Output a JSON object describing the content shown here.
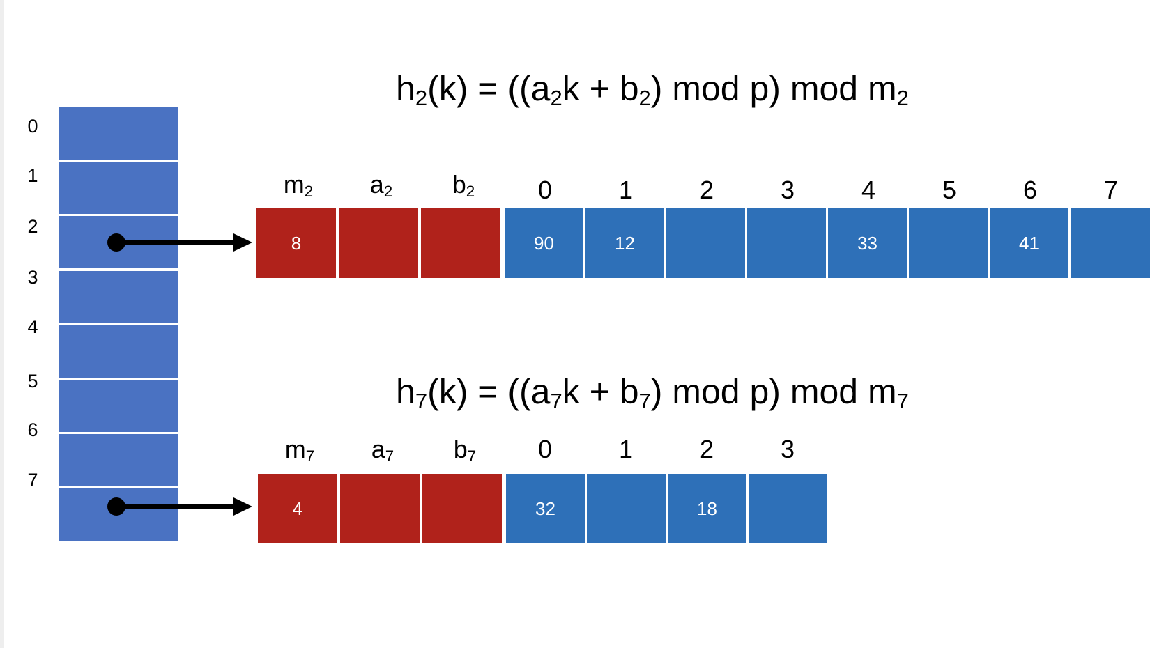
{
  "top_table": {
    "index_labels": [
      "0",
      "1",
      "2",
      "3",
      "4",
      "5",
      "6",
      "7"
    ]
  },
  "formula_2": {
    "h": "h",
    "h_sub": "2",
    "k": "(k) = ((a",
    "a_sub": "2",
    "k_plus_b": "k + b",
    "b_sub": "2",
    "tail": ") mod p) mod m",
    "m_sub": "2"
  },
  "formula_7": {
    "h": "h",
    "h_sub": "7",
    "k": "(k) = ((a",
    "a_sub": "7",
    "k_plus_b": "k + b",
    "b_sub": "7",
    "tail": ") mod p) mod m",
    "m_sub": "7"
  },
  "bucket_2": {
    "param_labels": [
      {
        "base": "m",
        "sub": "2"
      },
      {
        "base": "a",
        "sub": "2"
      },
      {
        "base": "b",
        "sub": "2"
      }
    ],
    "param_values": [
      "8",
      "",
      ""
    ],
    "slot_labels": [
      "0",
      "1",
      "2",
      "3",
      "4",
      "5",
      "6",
      "7"
    ],
    "slot_values": [
      "90",
      "12",
      "",
      "",
      "33",
      "",
      "41",
      ""
    ]
  },
  "bucket_7": {
    "param_labels": [
      {
        "base": "m",
        "sub": "7"
      },
      {
        "base": "a",
        "sub": "7"
      },
      {
        "base": "b",
        "sub": "7"
      }
    ],
    "param_values": [
      "4",
      "",
      ""
    ],
    "slot_labels": [
      "0",
      "1",
      "2",
      "3"
    ],
    "slot_values": [
      "32",
      "",
      "18",
      ""
    ]
  },
  "colors": {
    "top_slot": "#4a72c2",
    "param_cell": "#b0221b",
    "slot_cell": "#2e70b8",
    "arrow": "#000000"
  }
}
